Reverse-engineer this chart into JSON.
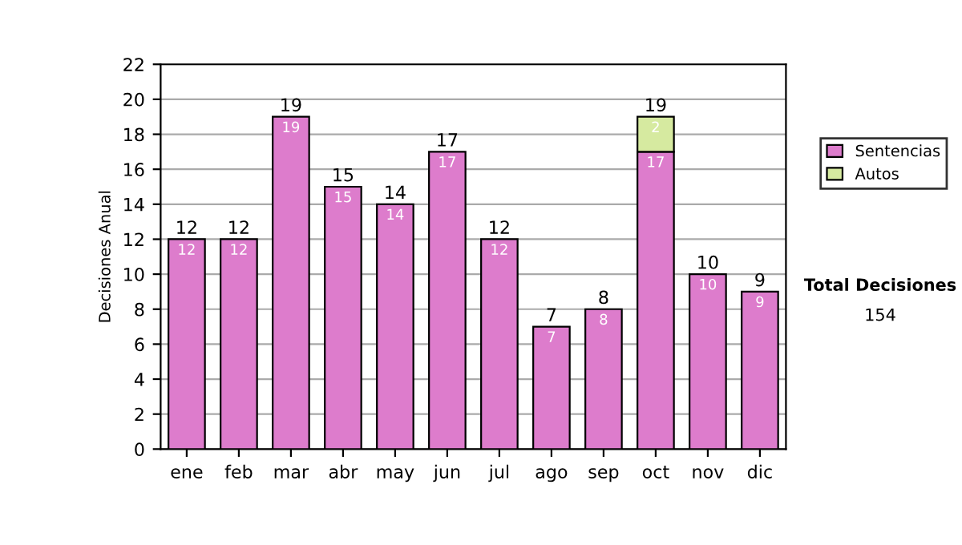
{
  "chart_data": {
    "type": "bar",
    "stacked": true,
    "ylabel": "Decisiones Anual",
    "categories": [
      "ene",
      "feb",
      "mar",
      "abr",
      "may",
      "jun",
      "jul",
      "ago",
      "sep",
      "oct",
      "nov",
      "dic"
    ],
    "series": [
      {
        "name": "Sentencias",
        "color": "#dd7ccc",
        "values": [
          12,
          12,
          19,
          15,
          14,
          17,
          12,
          7,
          8,
          17,
          10,
          9
        ],
        "value_labels": [
          "12",
          "12",
          "19",
          "15",
          "14",
          "17",
          "12",
          "7",
          "8",
          "17",
          "10",
          "9"
        ]
      },
      {
        "name": "Autos",
        "color": "#d6eaa0",
        "values": [
          null,
          null,
          null,
          null,
          null,
          null,
          null,
          null,
          null,
          2,
          null,
          null
        ],
        "value_labels": [
          null,
          null,
          null,
          null,
          null,
          null,
          null,
          null,
          null,
          "2",
          null,
          null
        ]
      }
    ],
    "totals": [
      "12",
      "12",
      "19",
      "15",
      "14",
      "17",
      "12",
      "7",
      "8",
      "19",
      "10",
      "9"
    ],
    "ylim": [
      0,
      22
    ],
    "yticks": [
      0,
      2,
      4,
      6,
      8,
      10,
      12,
      14,
      16,
      18,
      20,
      22
    ],
    "grid": "y",
    "legend": "right",
    "annotations": [
      "Total Decisiones",
      "154"
    ]
  }
}
